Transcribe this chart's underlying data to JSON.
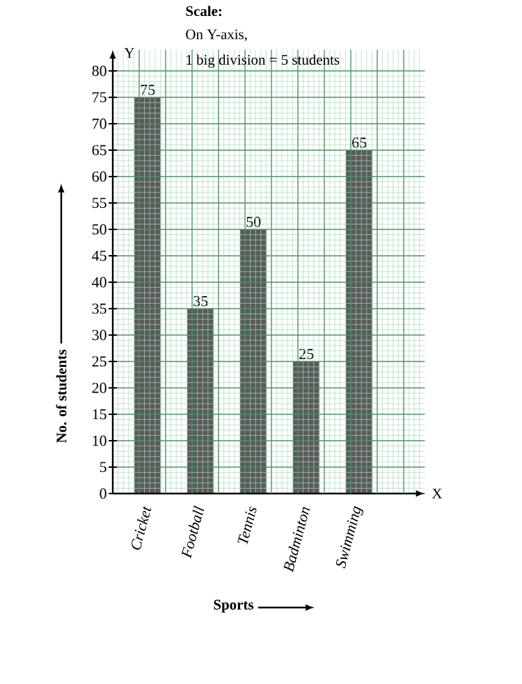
{
  "chart_data": {
    "type": "bar",
    "title": "Scale:",
    "annotations": [
      "On Y-axis,",
      "1 big division = 5 students",
      "Y",
      "X"
    ],
    "xlabel": "Sports",
    "ylabel": "No. of students",
    "categories": [
      "Cricket",
      "Football",
      "Tennis",
      "Badminton",
      "Swimming"
    ],
    "values": [
      75,
      35,
      50,
      25,
      65
    ],
    "color": "#5a5a5a",
    "ylim": [
      0,
      84
    ],
    "yticks": [
      0,
      5,
      10,
      15,
      20,
      25,
      30,
      35,
      40,
      45,
      50,
      55,
      60,
      65,
      70,
      75,
      80
    ],
    "grid": true,
    "data_labels": true
  }
}
